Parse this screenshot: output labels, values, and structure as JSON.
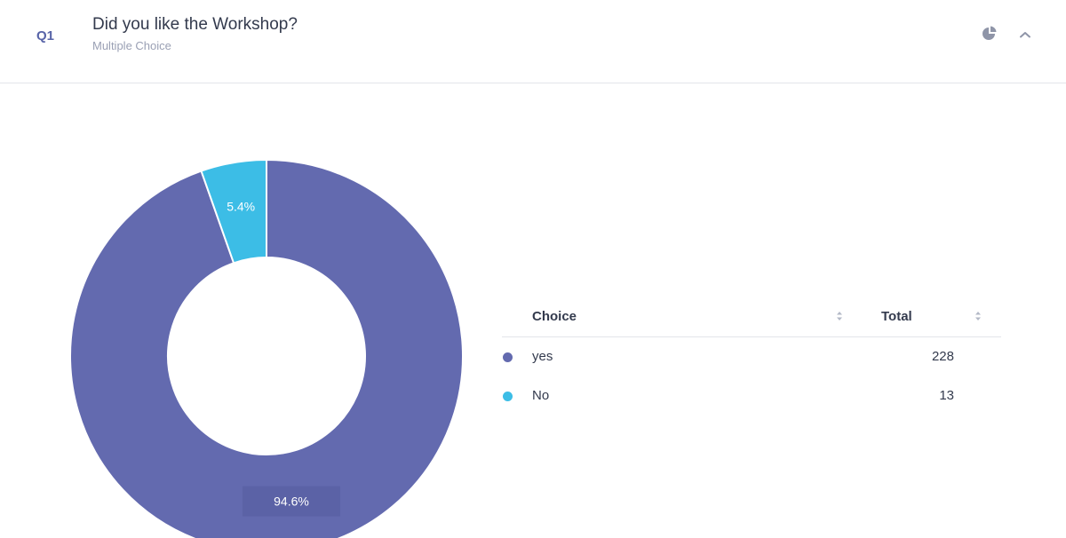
{
  "question": {
    "number": "Q1",
    "title": "Did you like the Workshop?",
    "type": "Multiple Choice"
  },
  "icons": {
    "chart_type": "pie-chart-icon",
    "collapse": "chevron-up-icon"
  },
  "table": {
    "headers": {
      "choice": "Choice",
      "total": "Total"
    },
    "rows": [
      {
        "label": "yes",
        "total": "228",
        "color": "#636aaf"
      },
      {
        "label": "No",
        "total": "13",
        "color": "#3cbde6"
      }
    ]
  },
  "chart_data": {
    "type": "pie",
    "categories": [
      "yes",
      "No"
    ],
    "values": [
      228,
      13
    ],
    "labels": [
      "94.6%",
      "5.4%"
    ],
    "colors": [
      "#636aaf",
      "#3cbde6"
    ]
  }
}
